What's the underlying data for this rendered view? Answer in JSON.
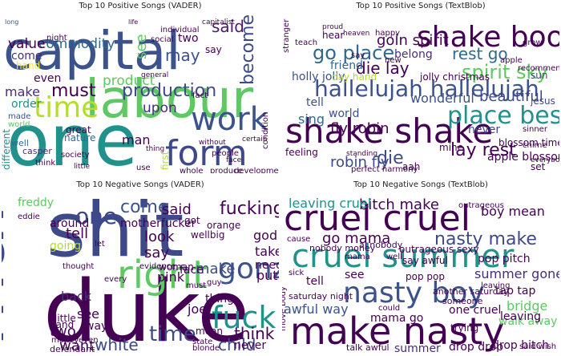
{
  "figure": {
    "panels": [
      {
        "title": "Top 10 Positive Songs (VADER)",
        "words": [
          {
            "text": "capital",
            "color": "#3b528b"
          },
          {
            "text": "labour",
            "color": "#5ec962"
          },
          {
            "text": "one",
            "color": "#21918c"
          },
          {
            "text": "work",
            "color": "#3b528b"
          },
          {
            "text": "form",
            "color": "#3e4989"
          },
          {
            "text": "time",
            "color": "#b5de2b"
          },
          {
            "text": "production",
            "color": "#3e4989"
          },
          {
            "text": "commodity",
            "color": "#31688e"
          },
          {
            "text": "value",
            "color": "#440154"
          },
          {
            "text": "said",
            "color": "#481a6c"
          },
          {
            "text": "become",
            "color": "#3e4989"
          },
          {
            "text": "may",
            "color": "#3b528b"
          },
          {
            "text": "must",
            "color": "#440154"
          },
          {
            "text": "product",
            "color": "#5ec962"
          },
          {
            "text": "upon",
            "color": "#472d7b"
          },
          {
            "text": "first",
            "color": "#b5de2b"
          },
          {
            "text": "man",
            "color": "#440154"
          },
          {
            "text": "make",
            "color": "#472d7b"
          },
          {
            "text": "come",
            "color": "#472d7b"
          },
          {
            "text": "hand",
            "color": "#fde725"
          },
          {
            "text": "even",
            "color": "#440154"
          },
          {
            "text": "well",
            "color": "#31688e"
          },
          {
            "text": "think",
            "color": "#440154"
          },
          {
            "text": "society",
            "color": "#440154"
          },
          {
            "text": "casper",
            "color": "#472d7b"
          },
          {
            "text": "nature",
            "color": "#31688e"
          },
          {
            "text": "great",
            "color": "#440154"
          },
          {
            "text": "different",
            "color": "#21918c"
          },
          {
            "text": "made",
            "color": "#3b528b"
          },
          {
            "text": "world",
            "color": "#5ec962"
          },
          {
            "text": "night",
            "color": "#440154"
          },
          {
            "text": "see",
            "color": "#5ec962"
          },
          {
            "text": "two",
            "color": "#440154"
          },
          {
            "text": "fact",
            "color": "#440154"
          },
          {
            "text": "say",
            "color": "#440154"
          },
          {
            "text": "people",
            "color": "#440154"
          },
          {
            "text": "whole",
            "color": "#440154"
          },
          {
            "text": "produce",
            "color": "#440154"
          },
          {
            "text": "development",
            "color": "#440154"
          },
          {
            "text": "individual",
            "color": "#440154"
          },
          {
            "text": "social",
            "color": "#440154"
          },
          {
            "text": "general",
            "color": "#440154"
          },
          {
            "text": "use",
            "color": "#440154"
          },
          {
            "text": "life",
            "color": "#440154"
          },
          {
            "text": "long",
            "color": "#3b528b"
          },
          {
            "text": "order",
            "color": "#21918c"
          },
          {
            "text": "condition",
            "color": "#440154"
          },
          {
            "text": "capitalist",
            "color": "#440154"
          },
          {
            "text": "little",
            "color": "#440154"
          },
          {
            "text": "without",
            "color": "#440154"
          },
          {
            "text": "certain",
            "color": "#440154"
          },
          {
            "text": "thing",
            "color": "#440154"
          },
          {
            "text": "face",
            "color": "#440154"
          }
        ]
      },
      {
        "title": "Top 10 Positive Songs (TextBlob)",
        "words": [
          {
            "text": "shake shake",
            "color": "#440154"
          },
          {
            "text": "shake booty",
            "color": "#440154"
          },
          {
            "text": "hallelujah hallelujah",
            "color": "#3b528b"
          },
          {
            "text": "place best",
            "color": "#21918c"
          },
          {
            "text": "go place",
            "color": "#31688e"
          },
          {
            "text": "goin spirit",
            "color": "#440154"
          },
          {
            "text": "spirit sky",
            "color": "#5ec962"
          },
          {
            "text": "rest go",
            "color": "#31688e"
          },
          {
            "text": "die lay",
            "color": "#440154"
          },
          {
            "text": "fly robin",
            "color": "#440154"
          },
          {
            "text": "robin fly",
            "color": "#3e4989"
          },
          {
            "text": "lay rest",
            "color": "#440154"
          },
          {
            "text": "die",
            "color": "#3e4989"
          },
          {
            "text": "wonderful",
            "color": "#3b528b"
          },
          {
            "text": "holly jolly",
            "color": "#3b528b"
          },
          {
            "text": "jolly christmas",
            "color": "#440154"
          },
          {
            "text": "belong",
            "color": "#472d7b"
          },
          {
            "text": "friend",
            "color": "#31688e"
          },
          {
            "text": "day hand",
            "color": "#b5de2b"
          },
          {
            "text": "world",
            "color": "#3b528b"
          },
          {
            "text": "sing",
            "color": "#31688e"
          },
          {
            "text": "tell",
            "color": "#3b528b"
          },
          {
            "text": "beautiful",
            "color": "#3e4989"
          },
          {
            "text": "blossom time",
            "color": "#440154"
          },
          {
            "text": "never",
            "color": "#3e4989"
          },
          {
            "text": "mine",
            "color": "#440154"
          },
          {
            "text": "apple blossom",
            "color": "#440154"
          },
          {
            "text": "jesus",
            "color": "#3e4989"
          },
          {
            "text": "sun",
            "color": "#3e4989"
          },
          {
            "text": "recommend",
            "color": "#440154"
          },
          {
            "text": "apple",
            "color": "#440154"
          },
          {
            "text": "grow",
            "color": "#440154"
          },
          {
            "text": "set",
            "color": "#440154"
          },
          {
            "text": "sinner",
            "color": "#440154"
          },
          {
            "text": "perfect harmony",
            "color": "#440154"
          },
          {
            "text": "feeling",
            "color": "#440154"
          },
          {
            "text": "standing",
            "color": "#440154"
          },
          {
            "text": "happy",
            "color": "#440154"
          },
          {
            "text": "heaven",
            "color": "#440154"
          },
          {
            "text": "stranger",
            "color": "#440154"
          },
          {
            "text": "teach",
            "color": "#440154"
          },
          {
            "text": "hear",
            "color": "#440154"
          },
          {
            "text": "say",
            "color": "#440154"
          },
          {
            "text": "new",
            "color": "#440154"
          },
          {
            "text": "proud",
            "color": "#440154"
          },
          {
            "text": "chime",
            "color": "#440154"
          },
          {
            "text": "aah",
            "color": "#440154"
          },
          {
            "text": "everybody",
            "color": "#440154"
          }
        ]
      },
      {
        "title": "Top 10 Negative Songs (VADER)",
        "words": [
          {
            "text": "shit",
            "color": "#3e4989"
          },
          {
            "text": "duke",
            "color": "#440154"
          },
          {
            "text": "man",
            "color": "#3e4989"
          },
          {
            "text": "one",
            "color": "#3e4989"
          },
          {
            "text": "fucking",
            "color": "#440154"
          },
          {
            "text": "gonzo",
            "color": "#3b528b"
          },
          {
            "text": "fuck",
            "color": "#21918c"
          },
          {
            "text": "right",
            "color": "#5ec962"
          },
          {
            "text": "time",
            "color": "#3e4989"
          },
          {
            "text": "come",
            "color": "#3b528b"
          },
          {
            "text": "said",
            "color": "#440154"
          },
          {
            "text": "motherfucker",
            "color": "#440154"
          },
          {
            "text": "back",
            "color": "#472d7b"
          },
          {
            "text": "tell",
            "color": "#440154"
          },
          {
            "text": "around",
            "color": "#440154"
          },
          {
            "text": "going",
            "color": "#b5de2b"
          },
          {
            "text": "freddy",
            "color": "#5ec962"
          },
          {
            "text": "say",
            "color": "#440154"
          },
          {
            "text": "look",
            "color": "#440154"
          },
          {
            "text": "make",
            "color": "#3e4989"
          },
          {
            "text": "god",
            "color": "#440154"
          },
          {
            "text": "take",
            "color": "#440154"
          },
          {
            "text": "need",
            "color": "#440154"
          },
          {
            "text": "put",
            "color": "#440154"
          },
          {
            "text": "think",
            "color": "#440154"
          },
          {
            "text": "child",
            "color": "#3e4989"
          },
          {
            "text": "white",
            "color": "#3e4989"
          },
          {
            "text": "want",
            "color": "#440154"
          },
          {
            "text": "two",
            "color": "#440154"
          },
          {
            "text": "see",
            "color": "#440154"
          },
          {
            "text": "joe",
            "color": "#440154"
          },
          {
            "text": "pink",
            "color": "#440154"
          },
          {
            "text": "face",
            "color": "#440154"
          },
          {
            "text": "never",
            "color": "#440154"
          },
          {
            "text": "orange",
            "color": "#440154"
          },
          {
            "text": "wellbig",
            "color": "#440154"
          },
          {
            "text": "mean",
            "color": "#440154"
          },
          {
            "text": "way",
            "color": "#440154"
          },
          {
            "text": "hand",
            "color": "#440154"
          },
          {
            "text": "little",
            "color": "#440154"
          },
          {
            "text": "defendant",
            "color": "#440154"
          },
          {
            "text": "blonde",
            "color": "#440154"
          },
          {
            "text": "state",
            "color": "#440154"
          },
          {
            "text": "woman",
            "color": "#440154"
          },
          {
            "text": "thing",
            "color": "#440154"
          },
          {
            "text": "money",
            "color": "#440154"
          },
          {
            "text": "guy",
            "color": "#440154"
          },
          {
            "text": "thought",
            "color": "#440154"
          },
          {
            "text": "every",
            "color": "#440154"
          },
          {
            "text": "evidence",
            "color": "#440154"
          },
          {
            "text": "eddie",
            "color": "#440154"
          },
          {
            "text": "must",
            "color": "#440154"
          },
          {
            "text": "even",
            "color": "#440154"
          },
          {
            "text": "let",
            "color": "#440154"
          },
          {
            "text": "got",
            "color": "#440154"
          }
        ]
      },
      {
        "title": "Top 10 Negative Songs (TextBlob)",
        "words": [
          {
            "text": "cruel cruel",
            "color": "#440154"
          },
          {
            "text": "cruel summer",
            "color": "#21918c"
          },
          {
            "text": "nasty boy",
            "color": "#3b528b"
          },
          {
            "text": "make nasty",
            "color": "#440154"
          },
          {
            "text": "nasty make",
            "color": "#3e4989"
          },
          {
            "text": "bitch make",
            "color": "#440154"
          },
          {
            "text": "leaving cruel",
            "color": "#21918c"
          },
          {
            "text": "boy mean",
            "color": "#440154"
          },
          {
            "text": "go mama",
            "color": "#440154"
          },
          {
            "text": "summer gone",
            "color": "#472d7b"
          },
          {
            "text": "pop pitch",
            "color": "#440154"
          },
          {
            "text": "tap tap",
            "color": "#440154"
          },
          {
            "text": "walk away",
            "color": "#5ec962"
          },
          {
            "text": "bridge",
            "color": "#5ec962"
          },
          {
            "text": "leaving",
            "color": "#440154"
          },
          {
            "text": "pop pop",
            "color": "#440154"
          },
          {
            "text": "awful way",
            "color": "#3b528b"
          },
          {
            "text": "drop drop",
            "color": "#440154"
          },
          {
            "text": "drop bitch",
            "color": "#440154"
          },
          {
            "text": "summer",
            "color": "#472d7b"
          },
          {
            "text": "one cruel",
            "color": "#440154"
          },
          {
            "text": "mama go",
            "color": "#440154"
          },
          {
            "text": "trying",
            "color": "#440154"
          },
          {
            "text": "tell",
            "color": "#440154"
          },
          {
            "text": "see",
            "color": "#440154"
          },
          {
            "text": "say awful",
            "color": "#440154"
          },
          {
            "text": "outrageous sexy",
            "color": "#440154"
          },
          {
            "text": "nobody money",
            "color": "#440154"
          },
          {
            "text": "ai nobody",
            "color": "#440154"
          },
          {
            "text": "another saturday",
            "color": "#440154"
          },
          {
            "text": "saturday night",
            "color": "#440154"
          },
          {
            "text": "talk awful",
            "color": "#440154"
          },
          {
            "text": "move body",
            "color": "#440154"
          },
          {
            "text": "said wish",
            "color": "#440154"
          },
          {
            "text": "mama",
            "color": "#440154"
          },
          {
            "text": "sick",
            "color": "#440154"
          },
          {
            "text": "leaving",
            "color": "#440154"
          },
          {
            "text": "outrageous",
            "color": "#440154"
          },
          {
            "text": "someone",
            "color": "#440154"
          },
          {
            "text": "could",
            "color": "#440154"
          },
          {
            "text": "well",
            "color": "#440154"
          },
          {
            "text": "cause",
            "color": "#440154"
          }
        ]
      }
    ]
  }
}
